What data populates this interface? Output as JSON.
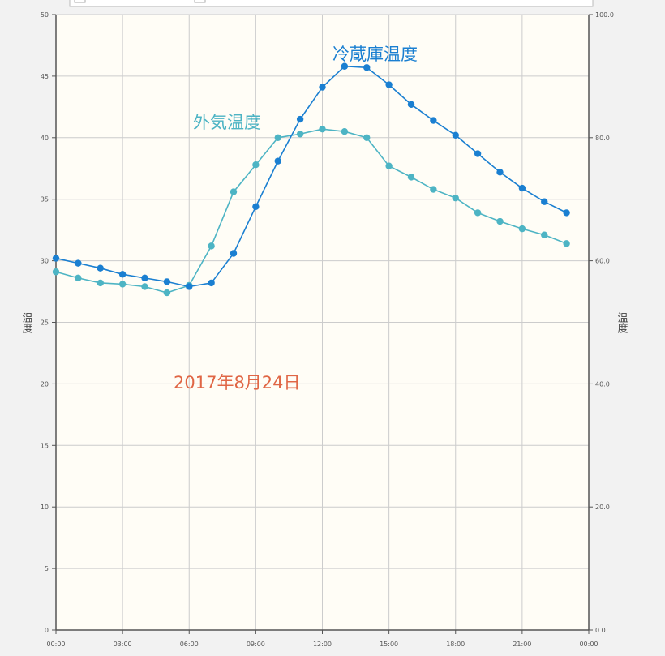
{
  "colors": {
    "plot_background": "#fffdf6",
    "grid": "#cccccc",
    "axis": "#555555",
    "fridge_series": "#1a7fd1",
    "outdoor_series": "#4db4c4",
    "date_text": "#e06645",
    "top_bar_border": "#bbbbbb"
  },
  "chart_data": {
    "type": "line",
    "y_axis_title": "温度",
    "y2_axis_title": "温度",
    "annotation": "2017年8月24日",
    "ylim": [
      0,
      50
    ],
    "y2lim": [
      0,
      100
    ],
    "xlim": [
      "00:00",
      "24:00"
    ],
    "grid": true,
    "y_ticks": [
      0,
      5,
      10,
      15,
      20,
      25,
      30,
      35,
      40,
      45,
      50
    ],
    "y2_ticks": [
      "0.0",
      "20.0",
      "40.0",
      "60.0",
      "80.0",
      "100.0"
    ],
    "y2_tick_values": [
      0,
      20,
      40,
      60,
      80,
      100
    ],
    "x_tick_labels": [
      "00:00",
      "03:00",
      "06:00",
      "09:00",
      "12:00",
      "15:00",
      "18:00",
      "21:00",
      "00:00"
    ],
    "x_tick_hours": [
      0,
      3,
      6,
      9,
      12,
      15,
      18,
      21,
      24
    ],
    "series": [
      {
        "name": "冷蔵庫温度",
        "color_key": "fridge_series",
        "x_hours": [
          0,
          1,
          2,
          3,
          4,
          5,
          6,
          7,
          8,
          9,
          10,
          11,
          12,
          13,
          14,
          15,
          16,
          17,
          18,
          19,
          20,
          21,
          22,
          23
        ],
        "values": [
          30.2,
          29.8,
          29.4,
          28.9,
          28.6,
          28.3,
          27.9,
          28.2,
          30.6,
          34.4,
          38.1,
          41.5,
          44.1,
          45.8,
          45.7,
          44.3,
          42.7,
          41.4,
          40.2,
          38.7,
          37.2,
          35.9,
          34.8,
          33.9
        ]
      },
      {
        "name": "外気温度",
        "color_key": "outdoor_series",
        "x_hours": [
          0,
          1,
          2,
          3,
          4,
          5,
          6,
          7,
          8,
          9,
          10,
          11,
          12,
          13,
          14,
          15,
          16,
          17,
          18,
          19,
          20,
          21,
          22,
          23
        ],
        "values": [
          29.1,
          28.6,
          28.2,
          28.1,
          27.9,
          27.4,
          28.0,
          31.2,
          35.6,
          37.8,
          40.0,
          40.3,
          40.7,
          40.5,
          40.0,
          37.7,
          36.8,
          35.8,
          35.1,
          33.9,
          33.2,
          32.6,
          32.1,
          31.4
        ]
      }
    ]
  }
}
